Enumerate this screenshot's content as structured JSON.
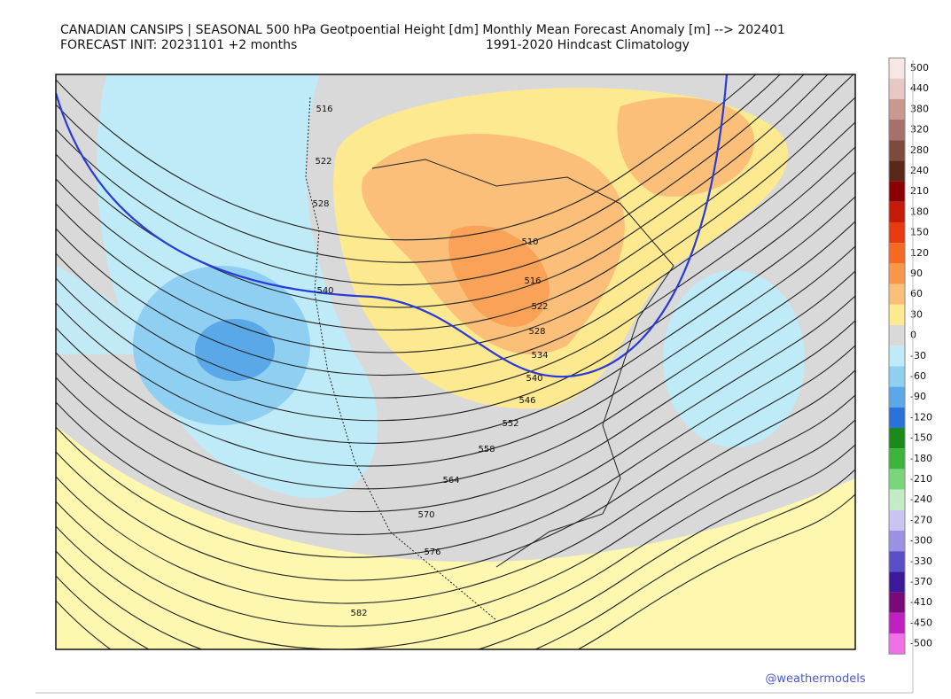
{
  "header": {
    "title": "CANADIAN CANSIPS | SEASONAL 500 hPa Geotpoential Height [dm] Monthly Mean Forecast Anomaly [m] --> 202401",
    "init": "FORECAST INIT: 20231101  +2 months",
    "climatology": "1991-2020 Hindcast Climatology"
  },
  "colorbar": {
    "levels": [
      500,
      440,
      380,
      320,
      280,
      240,
      210,
      180,
      150,
      120,
      90,
      60,
      30,
      0,
      -30,
      -60,
      -90,
      -120,
      -150,
      -180,
      -210,
      -240,
      -270,
      -300,
      -330,
      -370,
      -410,
      -450,
      -500
    ],
    "colors": [
      "#f7e6e6",
      "#e8c8c4",
      "#c9988e",
      "#a8706a",
      "#7d4a40",
      "#5a2818",
      "#8b0000",
      "#c41a0a",
      "#e83a10",
      "#f56a20",
      "#f8964a",
      "#fbbf7a",
      "#fde98f",
      "#d9d9d9",
      "#bfeaf8",
      "#8fd0f2",
      "#5aa8e8",
      "#2a72d8",
      "#1a8a1a",
      "#3cb43c",
      "#7ad67a",
      "#c4ecc4",
      "#c9c4f0",
      "#9a90e4",
      "#5a4ec8",
      "#3a1a9a",
      "#7a0a7a",
      "#c020c0",
      "#f070e8"
    ]
  },
  "contour_labels": [
    516,
    522,
    528,
    540,
    510,
    516,
    522,
    528,
    534,
    540,
    546,
    552,
    558,
    564,
    570,
    576,
    582
  ],
  "credit": "@weathermodels"
}
